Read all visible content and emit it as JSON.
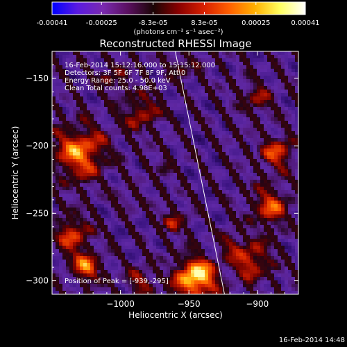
{
  "colorbar": {
    "tick_labels": [
      "-0.00041",
      "-0.00025",
      "-8.3e-05",
      "8.3e-05",
      "0.00025",
      "0.00041"
    ],
    "tick_values": [
      -0.00041,
      -0.00025,
      -8.3e-05,
      8.3e-05,
      0.00025,
      0.00041
    ],
    "range": [
      -0.00041,
      0.00041
    ],
    "units_label": "(photons cm⁻² s⁻¹ asec⁻²)",
    "colors": [
      "#0000ff",
      "#5a1ae0",
      "#7a2ab0",
      "#5a1060",
      "#1a0505",
      "#8a0000",
      "#d82000",
      "#ff6000",
      "#ffb000",
      "#ffff60",
      "#ffffff"
    ]
  },
  "chart_data": {
    "type": "heatmap",
    "title": "Reconstructed RHESSI Image",
    "xlabel": "Heliocentric X (arcsec)",
    "ylabel": "Heliocentric Y (arcsec)",
    "xlim": [
      -1050,
      -870
    ],
    "ylim": [
      -310,
      -130
    ],
    "x_ticks": [
      -1000,
      -950,
      -900
    ],
    "x_tick_labels": [
      "−1000",
      "−950",
      "−900"
    ],
    "y_ticks": [
      -150,
      -200,
      -250,
      -300
    ],
    "y_tick_labels": [
      "−150",
      "−200",
      "−250",
      "−300"
    ],
    "info_lines": [
      "16-Feb-2014 15:12:16.000 to 15:15:12.000",
      "Detectors: 3F 5F 6F 7F 8F 9F, Att 0",
      "Energy Range: 25.0 - 50.0 keV",
      "Clean     Total counts: 4.98E+03"
    ],
    "peak_label": "Position of Peak = [-939,-295]",
    "peak_position": [
      -939,
      -295
    ],
    "limb_line": [
      [
        -960,
        -130
      ],
      [
        -924,
        -310
      ]
    ]
  },
  "footer": {
    "timestamp": "16-Feb-2014 14:48"
  }
}
